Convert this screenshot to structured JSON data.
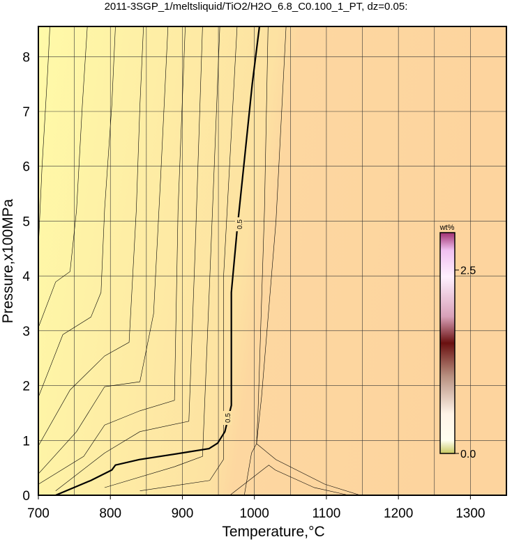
{
  "chart_data": {
    "type": "contour",
    "title": "2011-3SGP_1/meltsliquid/TiO2/H2O_6.8_C0.100_1_PT, dz=0.05:",
    "x_label": "Temperature,°C",
    "y_label": "Pressure,x100MPa",
    "xlim": [
      700,
      1350
    ],
    "ylim": [
      0,
      8.55
    ],
    "xticks": [
      700,
      800,
      900,
      1000,
      1100,
      1200,
      1300
    ],
    "xgrid": [
      700,
      750,
      800,
      850,
      900,
      950,
      1000,
      1050,
      1100,
      1150,
      1200,
      1250,
      1300
    ],
    "yticks": [
      0,
      1,
      2,
      3,
      4,
      5,
      6,
      7,
      8
    ],
    "contours": [
      {
        "level": 0.5,
        "x": [
          724,
          773,
          802,
          807,
          840,
          899,
          937,
          949,
          959,
          968,
          968,
          968,
          976,
          986,
          997,
          1007
        ],
        "y": [
          0,
          0.27,
          0.46,
          0.55,
          0.65,
          0.77,
          0.85,
          0.95,
          1.16,
          1.64,
          2.68,
          3.7,
          4.84,
          6.1,
          7.5,
          8.55
        ]
      }
    ],
    "lines": [
      {
        "x": [
          700,
          705,
          713,
          716
        ],
        "y": [
          4.52,
          5.97,
          7.75,
          8.55
        ]
      },
      {
        "x": [
          700,
          724,
          744,
          753,
          761,
          768
        ],
        "y": [
          3.06,
          3.89,
          4.08,
          5.2,
          7.1,
          8.55
        ]
      },
      {
        "x": [
          700,
          734,
          773,
          787,
          792,
          802,
          807
        ],
        "y": [
          1.79,
          2.93,
          3.25,
          3.7,
          5.22,
          7.12,
          8.55
        ]
      },
      {
        "x": [
          700,
          744,
          792,
          826,
          836,
          841,
          846
        ],
        "y": [
          0.9,
          1.92,
          2.54,
          2.79,
          5.2,
          7.1,
          8.55
        ]
      },
      {
        "x": [
          700,
          753,
          792,
          841,
          860,
          870,
          880
        ],
        "y": [
          0.39,
          1.16,
          1.98,
          2.07,
          3.31,
          5.85,
          8.55
        ]
      },
      {
        "x": [
          700,
          763,
          792,
          841,
          889,
          894,
          904
        ],
        "y": [
          0.2,
          0.71,
          1.28,
          1.54,
          1.73,
          5.22,
          8.55
        ]
      },
      {
        "x": [
          724,
          792,
          841,
          909,
          918,
          928
        ],
        "y": [
          0.08,
          0.77,
          1.16,
          1.35,
          4.57,
          8.55
        ]
      },
      {
        "x": [
          792,
          889,
          928,
          938,
          952
        ],
        "y": [
          0.14,
          0.52,
          0.71,
          3.94,
          8.55
        ]
      },
      {
        "x": [
          841,
          938,
          957,
          957,
          976
        ],
        "y": [
          0.08,
          0.27,
          0.65,
          3.94,
          8.55
        ]
      },
      {
        "x": [
          986,
          996,
          1003,
          1030,
          1098,
          1147
        ],
        "y": [
          0,
          0.77,
          0.94,
          0.65,
          0.2,
          0
        ]
      },
      {
        "x": [
          966,
          1020,
          1029,
          1083,
          1131
        ],
        "y": [
          0,
          0.55,
          0.46,
          0.14,
          0
        ]
      },
      {
        "x": [
          1019,
          1014,
          1005,
          1003
        ],
        "y": [
          8.55,
          5.2,
          1.5,
          0.94
        ]
      },
      {
        "x": [
          1044,
          1030,
          1010,
          1003
        ],
        "y": [
          8.55,
          5,
          1.8,
          0.94
        ]
      }
    ],
    "colorbar": {
      "label": "wt%",
      "clim": [
        0,
        3.01
      ],
      "ticks": [
        {
          "value": 0,
          "label": "0.0"
        },
        {
          "value": 2.5,
          "label": "2.5"
        }
      ]
    }
  }
}
